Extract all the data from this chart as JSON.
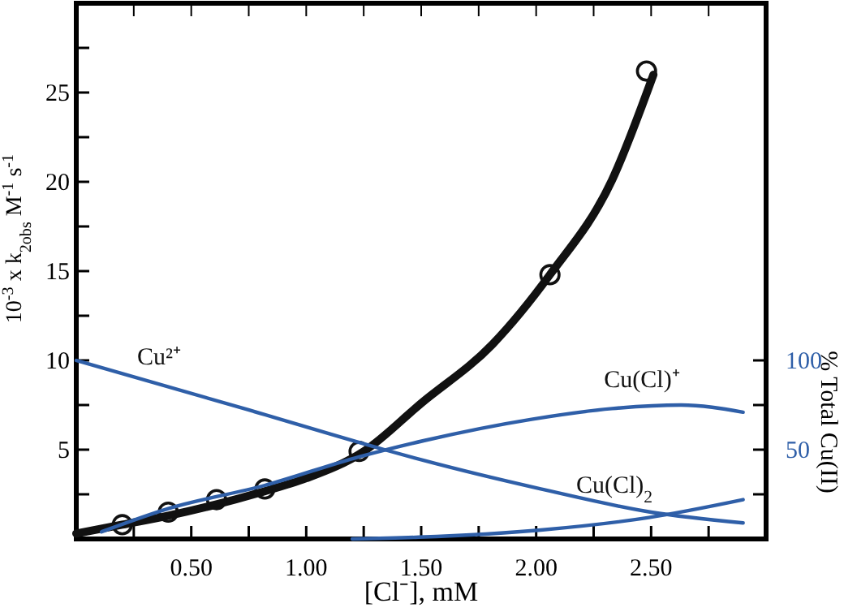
{
  "chart_data": {
    "type": "line",
    "xlabel": "[Cl⁻], mM",
    "ylabel": "10$^{-3}$ x k$_{2obs}$ M$^{-1}$ s$^{-1}$",
    "y2label": "% Total Cu(II)",
    "xlim": [
      0,
      3
    ],
    "ylim": [
      0,
      30
    ],
    "y2lim": [
      0,
      300
    ],
    "xticks": [
      {
        "value": 0.25,
        "label": null
      },
      {
        "value": 0.5,
        "label": "0.50"
      },
      {
        "value": 0.75,
        "label": null
      },
      {
        "value": 1,
        "label": "1.00"
      },
      {
        "value": 1.25,
        "label": null
      },
      {
        "value": 1.5,
        "label": "1.50"
      },
      {
        "value": 1.75,
        "label": null
      },
      {
        "value": 2,
        "label": "2.00"
      },
      {
        "value": 2.25,
        "label": null
      },
      {
        "value": 2.5,
        "label": "2.50"
      },
      {
        "value": 2.75,
        "label": null
      }
    ],
    "yticks": [
      {
        "value": 2.5,
        "label": null
      },
      5,
      {
        "value": 7.5,
        "label": null
      },
      10,
      {
        "value": 12.5,
        "label": null
      },
      15,
      {
        "value": 17.5,
        "label": null
      },
      20,
      {
        "value": 22.5,
        "label": null
      },
      25,
      {
        "value": 27.5,
        "label": null
      }
    ],
    "y2ticks": [
      {
        "value": 25,
        "label": null
      },
      50,
      {
        "value": 75,
        "label": null
      },
      100
    ],
    "grid": false,
    "series": [
      {
        "color": "#111111",
        "x": [
          0,
          0.2,
          0.4,
          0.6,
          0.8,
          1.0,
          1.25,
          1.5,
          1.81,
          2.06,
          2.33,
          2.51
        ],
        "values": [
          0.3,
          0.8,
          1.3,
          1.9,
          2.6,
          3.4,
          4.9,
          7.6,
          10.9,
          14.8,
          20.1,
          26.0
        ]
      },
      {
        "type": "scatter",
        "marker": "circle",
        "color": "#111111",
        "x": [
          0.2,
          0.4,
          0.61,
          0.82,
          1.23,
          2.06,
          2.48
        ],
        "values": [
          0.8,
          1.5,
          2.2,
          2.8,
          4.9,
          14.8,
          26.2
        ]
      },
      {
        "type": "line",
        "axis": "y2",
        "name": "Cu²⁺",
        "color": "#2f5fa8",
        "x": [
          0,
          0.73,
          1.34,
          1.51,
          2.02,
          2.5,
          2.9
        ],
        "values": [
          100,
          73,
          50,
          44,
          28,
          15,
          9
        ]
      },
      {
        "type": "line",
        "axis": "y2",
        "name": "Cu(Cl)⁺",
        "color": "#2f5fa8",
        "x": [
          0.11,
          0.4,
          0.82,
          1.23,
          1.51,
          1.98,
          2.33,
          2.63,
          2.9
        ],
        "values": [
          4,
          17,
          30,
          46,
          55,
          67,
          73,
          75,
          71
        ]
      },
      {
        "type": "line",
        "axis": "y2",
        "name": "Cu(Cl)$_{2}$",
        "color": "#2f5fa8",
        "x": [
          1.2,
          1.49,
          2.02,
          2.49,
          2.9
        ],
        "values": [
          0,
          1,
          5,
          12,
          22
        ]
      }
    ]
  }
}
